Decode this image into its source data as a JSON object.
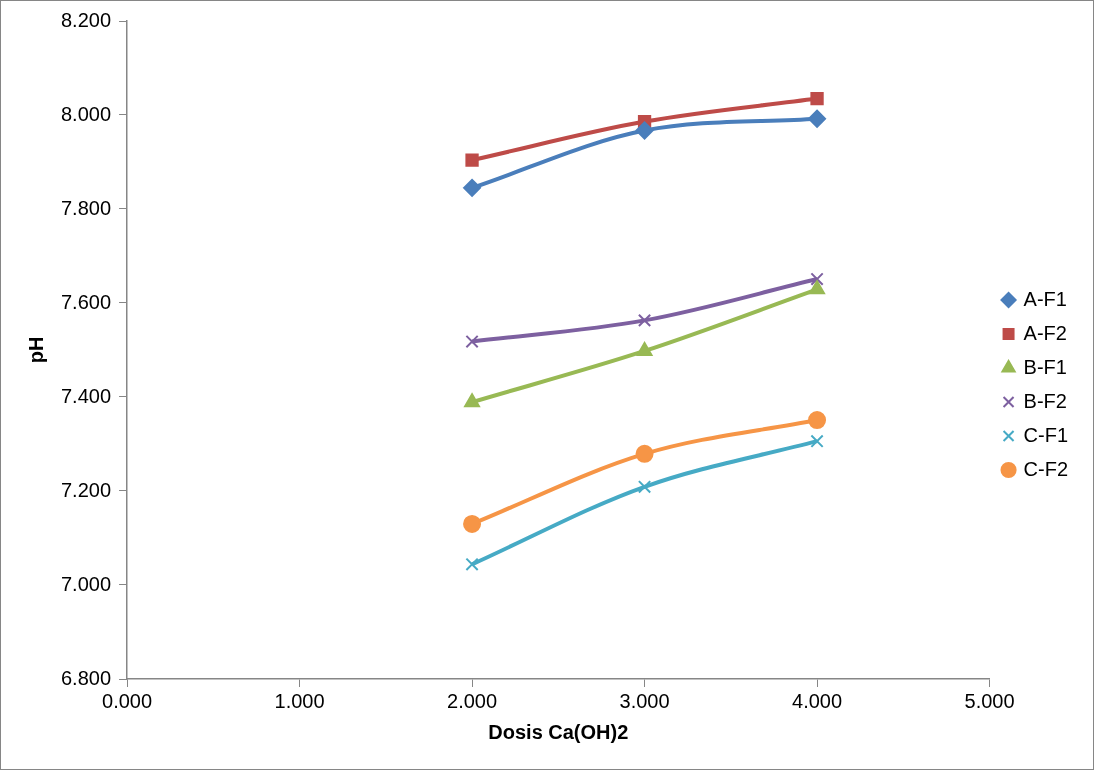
{
  "chart_data": {
    "type": "line",
    "xlabel": "Dosis Ca(OH)2",
    "ylabel": "pH",
    "xlim": [
      0,
      5
    ],
    "xticks": [
      {
        "value": 0,
        "label": "0.000"
      },
      {
        "value": 1,
        "label": "1.000"
      },
      {
        "value": 2,
        "label": "2.000"
      },
      {
        "value": 3,
        "label": "3.000"
      },
      {
        "value": 4,
        "label": "4.000"
      },
      {
        "value": 5,
        "label": "5.000"
      }
    ],
    "ylim": [
      6.8,
      8.2
    ],
    "yticks": [
      {
        "value": 6.8,
        "label": "6.800"
      },
      {
        "value": 7.0,
        "label": "7.000"
      },
      {
        "value": 7.2,
        "label": "7.200"
      },
      {
        "value": 7.4,
        "label": "7.400"
      },
      {
        "value": 7.6,
        "label": "7.600"
      },
      {
        "value": 7.8,
        "label": "7.800"
      },
      {
        "value": 8.0,
        "label": "8.000"
      },
      {
        "value": 8.2,
        "label": "8.200"
      }
    ],
    "x": [
      2,
      3,
      4
    ],
    "grid": false,
    "legend": "right",
    "line_style": "solid",
    "series": [
      {
        "name": "A-F1",
        "color": "#4a7ebb",
        "marker": "diamond",
        "values": [
          7.845,
          7.967,
          7.992
        ]
      },
      {
        "name": "A-F2",
        "color": "#be4b48",
        "marker": "square",
        "values": [
          7.904,
          7.986,
          8.035
        ]
      },
      {
        "name": "B-F1",
        "color": "#98b954",
        "marker": "triangle",
        "values": [
          7.389,
          7.498,
          7.629
        ]
      },
      {
        "name": "B-F2",
        "color": "#7d60a0",
        "marker": "cross",
        "values": [
          7.518,
          7.563,
          7.651
        ]
      },
      {
        "name": "C-F1",
        "color": "#46aac5",
        "marker": "cross",
        "values": [
          7.044,
          7.209,
          7.306
        ]
      },
      {
        "name": "C-F2",
        "color": "#f69546",
        "marker": "circle",
        "values": [
          7.13,
          7.279,
          7.351
        ]
      }
    ]
  }
}
